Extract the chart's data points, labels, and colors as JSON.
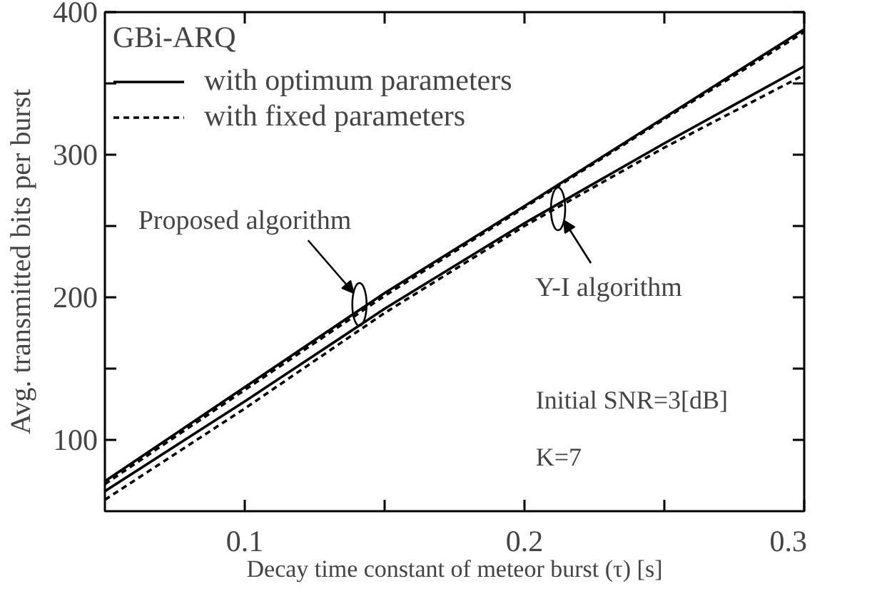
{
  "chart_data": {
    "type": "line",
    "xlabel": "Decay time constant of meteor burst (τ) [s]",
    "ylabel": "Avg. transmitted bits per burst",
    "legend_title": "GBi-ARQ",
    "x": [
      0.05,
      0.1,
      0.15,
      0.2,
      0.25,
      0.3
    ],
    "series": [
      {
        "name": "with optimum parameters",
        "color": "#000000",
        "line_style": "solid",
        "values": [
          71,
          137,
          203,
          264,
          326,
          388
        ]
      },
      {
        "name": "with fixed parameters",
        "color": "#000000",
        "line_style": "dashed",
        "values": [
          69,
          135,
          201,
          263,
          325,
          386
        ]
      },
      {
        "color": "#000000",
        "line_style": "solid",
        "values": [
          64,
          127,
          192,
          252,
          308,
          362
        ]
      },
      {
        "color": "#000000",
        "line_style": "dashed",
        "values": [
          58,
          122,
          189,
          250,
          305,
          356
        ]
      }
    ],
    "xlim": [
      0.05,
      0.3
    ],
    "ylim": [
      50,
      400
    ],
    "xticks": [
      0.1,
      {
        "value": 0.15,
        "label": null
      },
      0.2,
      {
        "value": 0.25,
        "label": null
      },
      0.3
    ],
    "yticks": [
      100,
      {
        "value": 150,
        "label": null
      },
      200,
      {
        "value": 250,
        "label": null
      },
      300,
      {
        "value": 350,
        "label": null
      },
      400
    ],
    "annotations": [
      {
        "text": "Proposed algorithm",
        "x": 0.141,
        "y": 195
      },
      {
        "text": "Y-I algorithm",
        "x": 0.212,
        "y": 262
      },
      "Initial SNR=3[dB]",
      "K=7"
    ],
    "legend": "top left",
    "grid": false,
    "marker": "none"
  }
}
